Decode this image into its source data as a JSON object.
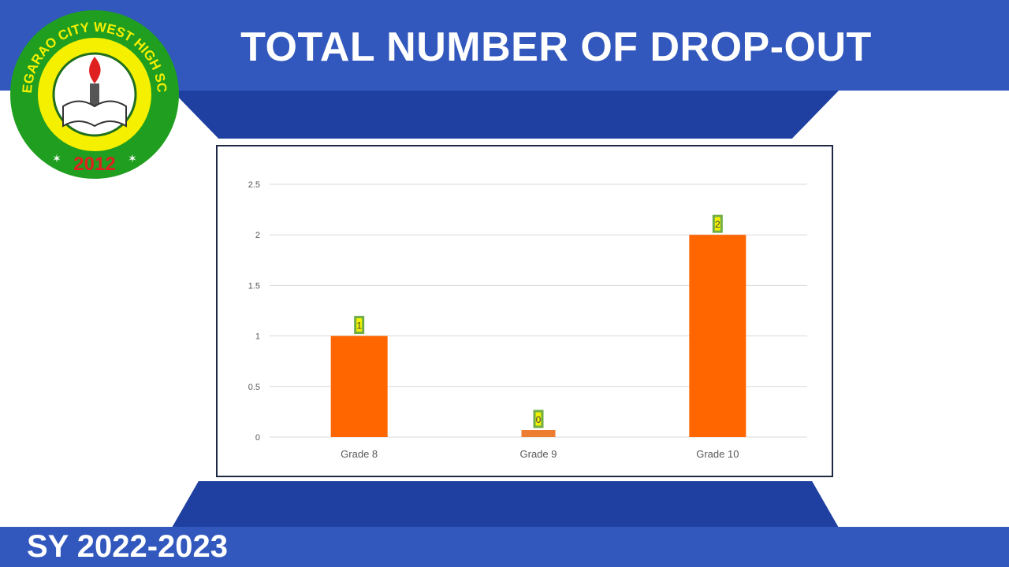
{
  "header": {
    "title": "TOTAL NUMBER OF DROP-OUT"
  },
  "footer": {
    "school_year": "SY 2022-2023"
  },
  "logo": {
    "text_top": "TUGUEGARAO CITY WEST HIGH SCHOOL",
    "year": "2012",
    "icon": "torch-book-seal-icon"
  },
  "colors": {
    "band": "#3258bd",
    "band_dark": "#1f40a0",
    "bar": "#ff6600",
    "bar_zero": "#ed7d31",
    "label_bg": "#f2f200",
    "label_border": "#70ad47",
    "grid": "#d9d9d9"
  },
  "chart_data": {
    "type": "bar",
    "categories": [
      "Grade 8",
      "Grade 9",
      "Grade 10"
    ],
    "values": [
      1,
      0,
      2
    ],
    "data_labels": [
      "1",
      "0",
      "2"
    ],
    "ylim": [
      0,
      2.5
    ],
    "yticks": [
      "0",
      "0.5",
      "1",
      "1.5",
      "2",
      "2.5"
    ],
    "grid": true,
    "legend": "none",
    "title": "",
    "xlabel": "",
    "ylabel": ""
  }
}
